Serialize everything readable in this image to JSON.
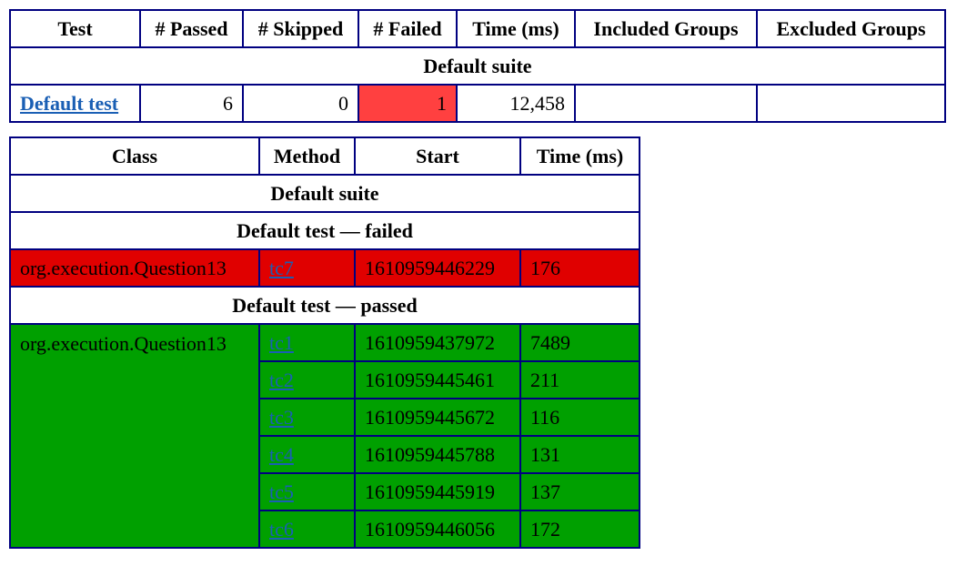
{
  "summary": {
    "headers": [
      "Test",
      "# Passed",
      "# Skipped",
      "# Failed",
      "Time (ms)",
      "Included Groups",
      "Excluded Groups"
    ],
    "suite": "Default suite",
    "row": {
      "test": "Default test",
      "passed": "6",
      "skipped": "0",
      "failed": "1",
      "time": "12,458",
      "included": "",
      "excluded": ""
    }
  },
  "methods": {
    "headers": [
      "Class",
      "Method",
      "Start",
      "Time (ms)"
    ],
    "suite": "Default suite",
    "failed_heading": "Default test — failed",
    "passed_heading": "Default test — passed",
    "failed": [
      {
        "class": "org.execution.Question13",
        "method": "tc7",
        "start": "1610959446229",
        "time": "176"
      }
    ],
    "passed_class": "org.execution.Question13",
    "passed": [
      {
        "method": "tc1",
        "start": "1610959437972",
        "time": "7489"
      },
      {
        "method": "tc2",
        "start": "1610959445461",
        "time": "211"
      },
      {
        "method": "tc3",
        "start": "1610959445672",
        "time": "116"
      },
      {
        "method": "tc4",
        "start": "1610959445788",
        "time": "131"
      },
      {
        "method": "tc5",
        "start": "1610959445919",
        "time": "137"
      },
      {
        "method": "tc6",
        "start": "1610959446056",
        "time": "172"
      }
    ]
  },
  "colors": {
    "failed_cell": "#ff4040",
    "failed_row": "#e00000",
    "passed_row": "#00a000",
    "border": "#000080"
  }
}
